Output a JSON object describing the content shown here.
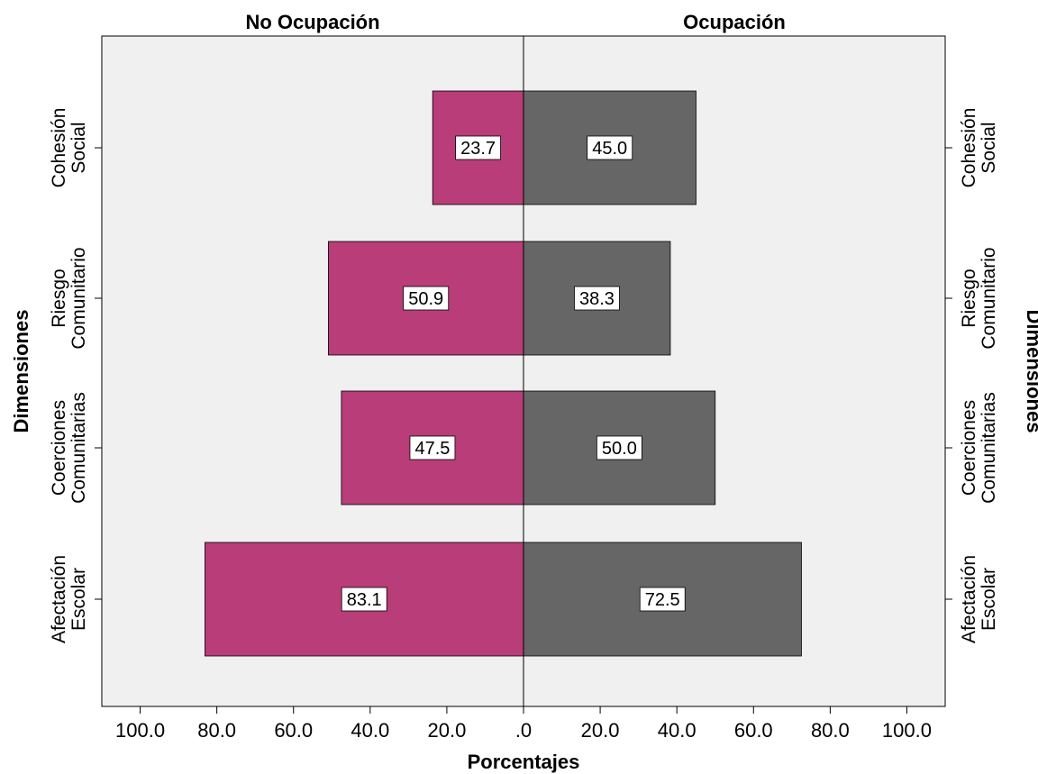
{
  "chart_data": {
    "type": "bar",
    "orientation": "horizontal",
    "layout": "back-to-back population pyramid",
    "categories": [
      [
        "Cohesión",
        "Social"
      ],
      [
        "Riesgo",
        "Comunitario"
      ],
      [
        "Coerciones",
        "Comunitarias"
      ],
      [
        "Afectación",
        "Escolar"
      ]
    ],
    "series": [
      {
        "name": "No Ocupación",
        "color": "#b83d78",
        "side": "left",
        "values": [
          23.7,
          50.9,
          47.5,
          83.1
        ]
      },
      {
        "name": "Ocupación",
        "color": "#666666",
        "side": "right",
        "values": [
          45.0,
          38.3,
          50.0,
          72.5
        ]
      }
    ],
    "xlabel": "Porcentajes",
    "ylabel": "Dimensiones",
    "xlim": [
      0,
      110
    ],
    "x_ticks": [
      {
        "value": 100,
        "label": "100.0"
      },
      {
        "value": 80,
        "label": "80.0"
      },
      {
        "value": 60,
        "label": "60.0"
      },
      {
        "value": 40,
        "label": "40.0"
      },
      {
        "value": 20,
        "label": "20.0"
      },
      {
        "value": 0,
        "label": ".0"
      }
    ],
    "data_labels": [
      [
        "23.7",
        "45.0"
      ],
      [
        "50.9",
        "38.3"
      ],
      [
        "47.5",
        "50.0"
      ],
      [
        "83.1",
        "72.5"
      ]
    ],
    "background_color": "#f0f0f0",
    "grid": false,
    "legend": "none"
  }
}
